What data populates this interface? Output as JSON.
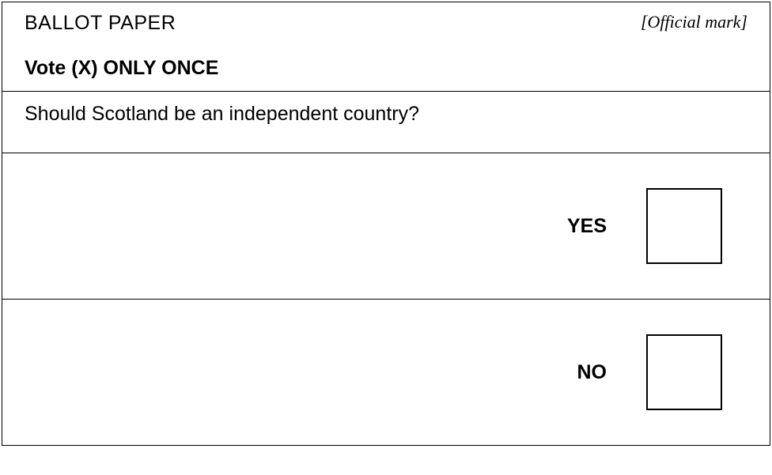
{
  "header": {
    "title": "BALLOT PAPER",
    "official_mark": "[Official mark]",
    "instruction": "Vote (X) ONLY ONCE"
  },
  "question": "Should Scotland be an independent country?",
  "choices": [
    {
      "label": "YES"
    },
    {
      "label": "NO"
    }
  ],
  "styling": {
    "border_color": "#000000",
    "background_color": "#ffffff",
    "text_color": "#000000",
    "title_fontsize": 25,
    "instruction_fontsize": 25,
    "question_fontsize": 25,
    "choice_fontsize": 25,
    "checkbox_size": 96,
    "checkbox_border_width": 2,
    "font_family": "Arial, Helvetica, sans-serif",
    "official_mark_font": "Times New Roman, serif"
  }
}
